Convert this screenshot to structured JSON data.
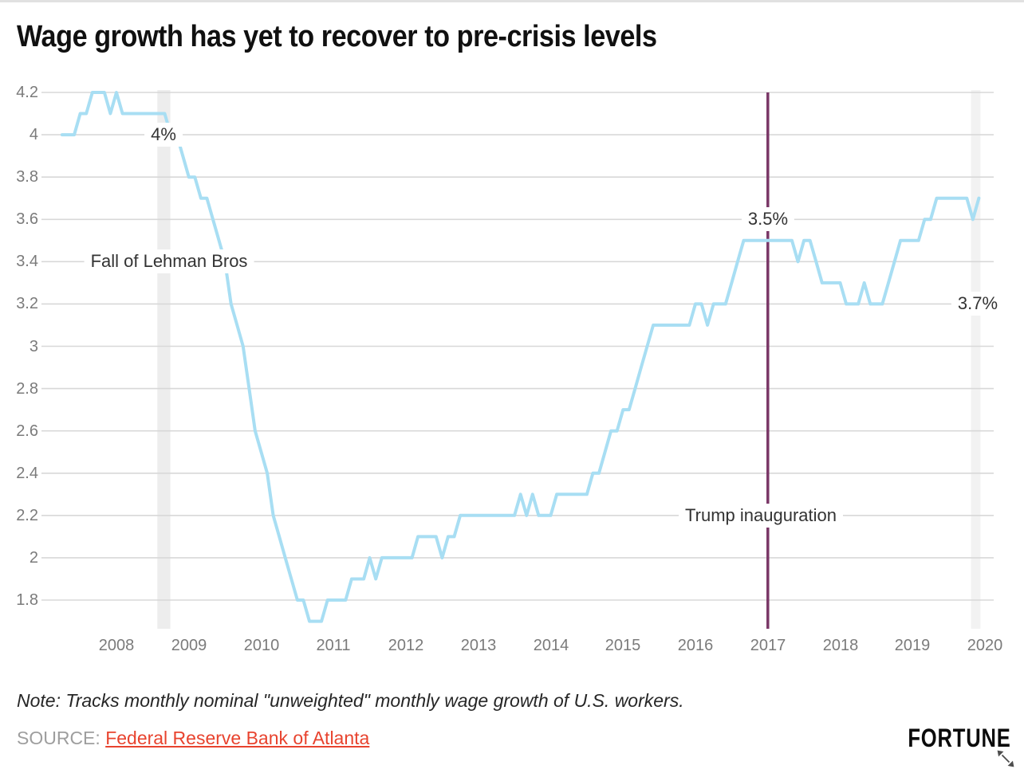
{
  "page": {
    "title": "Wage growth has yet to recover to pre-crisis levels"
  },
  "footer": {
    "note": "Note: Tracks monthly nominal \"unweighted\" monthly wage growth of U.S. workers.",
    "source_label": "SOURCE:",
    "source_link": "Federal Reserve Bank of Atlanta",
    "brand": "FORTUNE"
  },
  "colors": {
    "line_blue": "#a8def3",
    "inauguration_purple": "#7a3767",
    "lehman_band_gray": "#ededed",
    "latest_band_gray": "#f2f2f2",
    "gridline_gray": "#d8d8d8",
    "tick_label_gray": "#7b7b7b",
    "source_link_red": "#e8432e",
    "annotation_text": "#333333"
  },
  "chart_data": {
    "type": "line",
    "title": "Wage growth has yet to recover to pre-crisis levels",
    "xlabel": "",
    "ylabel": "",
    "xlim": [
      2007.15,
      2020.1
    ],
    "ylim": [
      1.65,
      4.25
    ],
    "grid": "horizontal",
    "legend": "none",
    "yticks": {
      "values": [
        4.2,
        4.0,
        3.8,
        3.6,
        3.4,
        3.2,
        3.0,
        2.8,
        2.6,
        2.4,
        2.2,
        2.0,
        1.8
      ],
      "labels": [
        "4.2",
        "4",
        "3.8",
        "3.6",
        "3.4",
        "3.2",
        "3",
        "2.8",
        "2.6",
        "2.4",
        "2.2",
        "2",
        "1.8"
      ]
    },
    "xticks": {
      "values": [
        2008,
        2009,
        2010,
        2011,
        2012,
        2013,
        2014,
        2015,
        2016,
        2017,
        2018,
        2019,
        2020
      ],
      "labels": [
        "2008",
        "2009",
        "2010",
        "2011",
        "2012",
        "2013",
        "2014",
        "2015",
        "2016",
        "2017",
        "2018",
        "2019",
        "2020"
      ]
    },
    "series": [
      {
        "name": "U.S. monthly nominal unweighted wage growth (%)",
        "color": "#a8def3",
        "start": "2007-04",
        "frequency": "monthly",
        "values": [
          4.0,
          4.0,
          4.0,
          4.1,
          4.1,
          4.2,
          4.2,
          4.2,
          4.1,
          4.2,
          4.1,
          4.1,
          4.1,
          4.1,
          4.1,
          4.1,
          4.1,
          4.1,
          4.0,
          4.0,
          3.9,
          3.8,
          3.8,
          3.7,
          3.7,
          3.6,
          3.5,
          3.4,
          3.2,
          3.1,
          3.0,
          2.8,
          2.6,
          2.5,
          2.4,
          2.2,
          2.1,
          2.0,
          1.9,
          1.8,
          1.8,
          1.7,
          1.7,
          1.7,
          1.8,
          1.8,
          1.8,
          1.8,
          1.9,
          1.9,
          1.9,
          2.0,
          1.9,
          2.0,
          2.0,
          2.0,
          2.0,
          2.0,
          2.0,
          2.1,
          2.1,
          2.1,
          2.1,
          2.0,
          2.1,
          2.1,
          2.2,
          2.2,
          2.2,
          2.2,
          2.2,
          2.2,
          2.2,
          2.2,
          2.2,
          2.2,
          2.3,
          2.2,
          2.3,
          2.2,
          2.2,
          2.2,
          2.3,
          2.3,
          2.3,
          2.3,
          2.3,
          2.3,
          2.4,
          2.4,
          2.5,
          2.6,
          2.6,
          2.7,
          2.7,
          2.8,
          2.9,
          3.0,
          3.1,
          3.1,
          3.1,
          3.1,
          3.1,
          3.1,
          3.1,
          3.2,
          3.2,
          3.1,
          3.2,
          3.2,
          3.2,
          3.3,
          3.4,
          3.5,
          3.5,
          3.5,
          3.5,
          3.5,
          3.5,
          3.5,
          3.5,
          3.5,
          3.4,
          3.5,
          3.5,
          3.4,
          3.3,
          3.3,
          3.3,
          3.3,
          3.2,
          3.2,
          3.2,
          3.3,
          3.2,
          3.2,
          3.2,
          3.3,
          3.4,
          3.5,
          3.5,
          3.5,
          3.5,
          3.6,
          3.6,
          3.7,
          3.7,
          3.7,
          3.7,
          3.7,
          3.7,
          3.6,
          3.7
        ]
      }
    ],
    "events": [
      {
        "name": "lehman-collapse-band",
        "type": "band",
        "year": 2008.655,
        "width_years": 0.18,
        "color": "#ededed"
      },
      {
        "name": "latest-month-band",
        "type": "band",
        "year": 2019.873,
        "width_years": 0.13,
        "color": "#f2f2f2"
      },
      {
        "name": "trump-inauguration-line",
        "type": "vline",
        "year": 2017.0,
        "color": "#7a3767"
      }
    ],
    "annotations": [
      {
        "name": "annotation-4-percent",
        "text": "4%",
        "year": 2008.655,
        "value": 4.0
      },
      {
        "name": "annotation-lehman",
        "text": "Fall of Lehman Bros",
        "year": 2008.73,
        "value": 3.4
      },
      {
        "name": "annotation-3-5-percent",
        "text": "3.5%",
        "year": 2017.0,
        "value": 3.6
      },
      {
        "name": "annotation-trump-inauguration",
        "text": "Trump inauguration",
        "year": 2016.9,
        "value": 2.2
      },
      {
        "name": "annotation-3-7-percent",
        "text": "3.7%",
        "year": 2019.9,
        "value": 3.2
      }
    ]
  }
}
